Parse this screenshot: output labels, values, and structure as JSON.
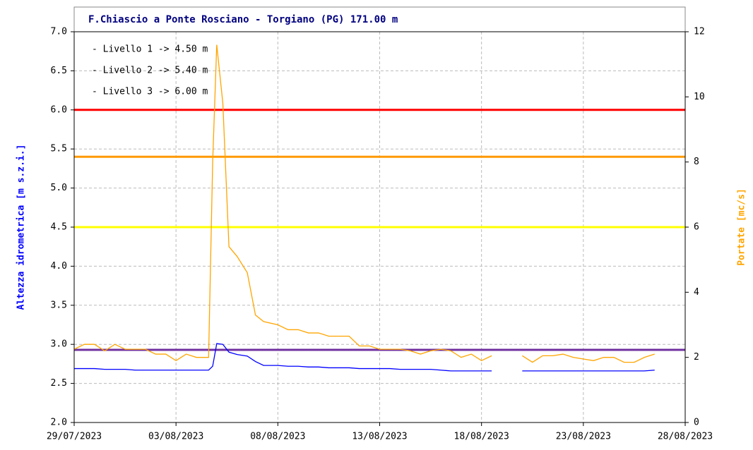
{
  "chart_data": {
    "type": "line",
    "title": "F.Chiascio a Ponte Rosciano - Torgiano (PG) 171.00 m",
    "ylabel": "Altezza idrometrica [m s.z.i.]",
    "y2label": "Portate [mc/s]",
    "annotations": [
      "- Livello 1 -> 4.50 m",
      "- Livello 2 -> 5.40 m",
      "- Livello 3 -> 6.00 m"
    ],
    "thresholds": [
      {
        "value": 4.5,
        "color": "#ffff00"
      },
      {
        "value": 5.4,
        "color": "#ff9900"
      },
      {
        "value": 6.0,
        "color": "#ff0000"
      },
      {
        "value": 2.93,
        "color": "#7030a0"
      }
    ],
    "x": [
      0,
      0.5,
      1,
      1.5,
      2,
      2.5,
      3,
      3.5,
      4,
      4.5,
      5,
      5.5,
      6,
      6.6,
      6.8,
      7.0,
      7.3,
      7.6,
      8.0,
      8.5,
      8.9,
      9.3,
      10,
      10.5,
      11,
      11.5,
      12,
      12.5,
      13,
      13.5,
      14,
      14.5,
      15,
      15.5,
      16,
      16.5,
      17,
      17.5,
      18,
      18.5,
      19,
      19.5,
      20,
      20.5,
      21,
      21.5,
      22,
      22.5,
      23,
      23.5,
      24,
      24.5,
      25,
      25.5,
      26,
      26.5,
      27,
      27.5,
      28,
      28.5
    ],
    "series": [
      {
        "name": "Altezza idrometrica",
        "color": "#0000ff",
        "values": [
          2.69,
          2.69,
          2.69,
          2.68,
          2.68,
          2.68,
          2.67,
          2.67,
          2.67,
          2.67,
          2.67,
          2.67,
          2.67,
          2.67,
          2.72,
          3.01,
          3.0,
          2.9,
          2.87,
          2.85,
          2.78,
          2.73,
          2.73,
          2.72,
          2.72,
          2.71,
          2.71,
          2.7,
          2.7,
          2.7,
          2.69,
          2.69,
          2.69,
          2.69,
          2.68,
          2.68,
          2.68,
          2.68,
          2.67,
          2.66,
          2.66,
          2.66,
          2.66,
          2.66,
          null,
          null,
          2.66,
          2.66,
          2.66,
          2.66,
          2.66,
          2.66,
          2.66,
          2.66,
          2.66,
          2.66,
          2.66,
          2.66,
          2.66,
          2.67
        ]
      },
      {
        "name": "Portate",
        "color": "#ffa500",
        "axis": "y2",
        "values": [
          2.25,
          2.4,
          2.4,
          2.2,
          2.4,
          2.25,
          2.25,
          2.25,
          2.1,
          2.1,
          1.9,
          2.1,
          2.0,
          2.0,
          8.0,
          11.6,
          9.8,
          5.4,
          5.1,
          4.6,
          3.3,
          3.1,
          3.0,
          2.85,
          2.85,
          2.75,
          2.75,
          2.65,
          2.65,
          2.65,
          2.35,
          2.35,
          2.25,
          2.25,
          2.25,
          2.2,
          2.1,
          2.2,
          2.25,
          2.2,
          2.0,
          2.1,
          1.9,
          2.05,
          null,
          null,
          2.05,
          1.85,
          2.05,
          2.05,
          2.1,
          2.0,
          1.95,
          1.9,
          2.0,
          2.0,
          1.85,
          1.85,
          2.0,
          2.1
        ]
      }
    ],
    "xlim": [
      0,
      30
    ],
    "xticks": [
      {
        "value": 0,
        "label": "29/07/2023"
      },
      {
        "value": 5,
        "label": "03/08/2023"
      },
      {
        "value": 10,
        "label": "08/08/2023"
      },
      {
        "value": 15,
        "label": "13/08/2023"
      },
      {
        "value": 20,
        "label": "18/08/2023"
      },
      {
        "value": 25,
        "label": "23/08/2023"
      },
      {
        "value": 30,
        "label": "28/08/2023"
      }
    ],
    "ylim": [
      2,
      7
    ],
    "yticks": [
      {
        "value": 2,
        "label": "2.0"
      },
      {
        "value": 2.5,
        "label": "2.5"
      },
      {
        "value": 3,
        "label": "3.0"
      },
      {
        "value": 3.5,
        "label": "3.5"
      },
      {
        "value": 4,
        "label": "4.0"
      },
      {
        "value": 4.5,
        "label": "4.5"
      },
      {
        "value": 5,
        "label": "5.0"
      },
      {
        "value": 5.5,
        "label": "5.5"
      },
      {
        "value": 6,
        "label": "6.0"
      },
      {
        "value": 6.5,
        "label": "6.5"
      },
      {
        "value": 7,
        "label": "7.0"
      }
    ],
    "y2lim": [
      0,
      12
    ],
    "y2ticks": [
      0,
      2,
      4,
      6,
      8,
      10,
      12
    ],
    "grid": true
  }
}
